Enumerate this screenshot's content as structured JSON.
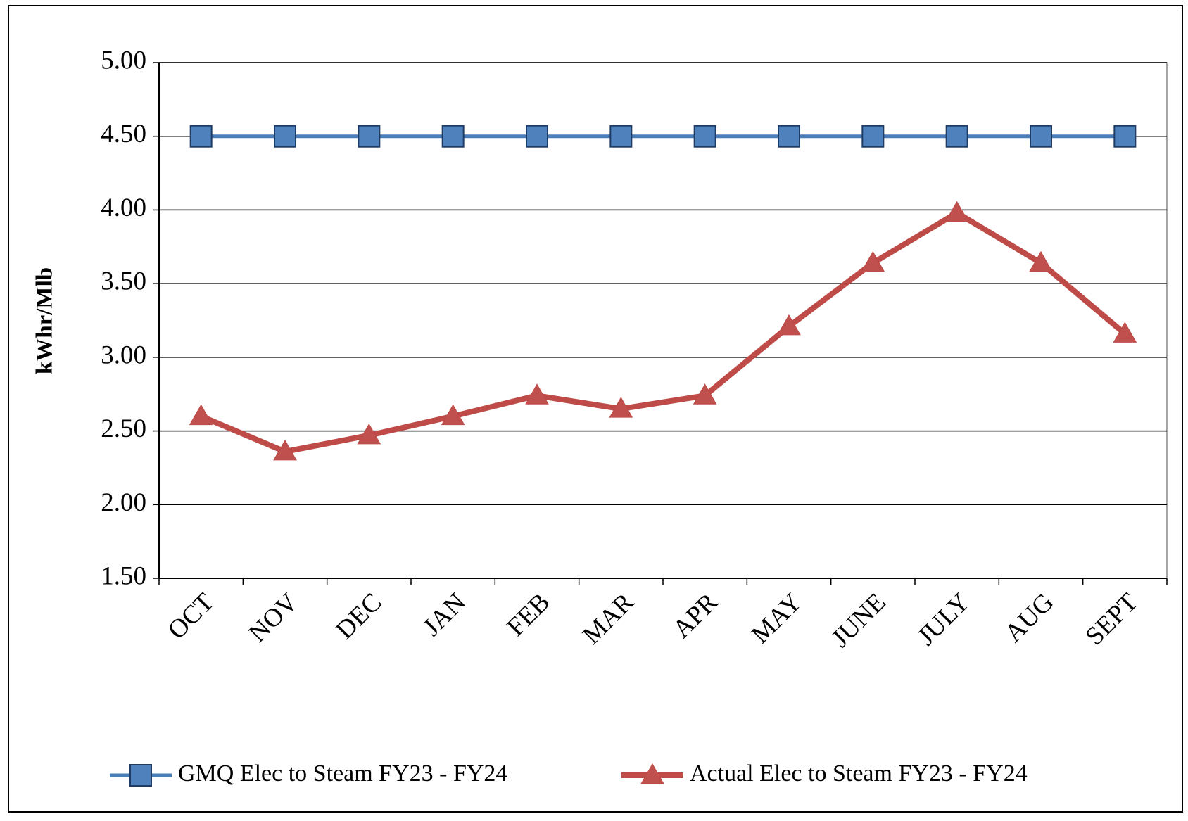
{
  "chart_data": {
    "type": "line",
    "y_label": "kWhr/Mlb",
    "categories": [
      "OCT",
      "NOV",
      "DEC",
      "JAN",
      "FEB",
      "MAR",
      "APR",
      "MAY",
      "JUNE",
      "JULY",
      "AUG",
      "SEPT"
    ],
    "series": [
      {
        "name": "GMQ Elec to Steam FY23 - FY24",
        "color": "#4a7ebb",
        "marker": "square",
        "marker_color": "#4f81bd",
        "values": [
          4.5,
          4.5,
          4.5,
          4.5,
          4.5,
          4.5,
          4.5,
          4.5,
          4.5,
          4.5,
          4.5,
          4.5
        ]
      },
      {
        "name": "Actual Elec to Steam FY23 - FY24",
        "color": "#be4b48",
        "marker": "triangle",
        "marker_color": "#c0504d",
        "values": [
          2.6,
          2.36,
          2.47,
          2.6,
          2.74,
          2.65,
          2.74,
          3.21,
          3.64,
          3.98,
          3.64,
          3.16
        ]
      }
    ],
    "ylim": [
      1.5,
      5
    ],
    "yticks": [
      {
        "value": 1.5,
        "label": "1.50"
      },
      {
        "value": 2,
        "label": "2.00"
      },
      {
        "value": 2.5,
        "label": "2.50"
      },
      {
        "value": 3,
        "label": "3.00"
      },
      {
        "value": 3.5,
        "label": "3.50"
      },
      {
        "value": 4,
        "label": "4.00"
      },
      {
        "value": 4.5,
        "label": "4.50"
      },
      {
        "value": 5,
        "label": "5.00"
      }
    ],
    "grid": true,
    "legend": "bottom"
  }
}
